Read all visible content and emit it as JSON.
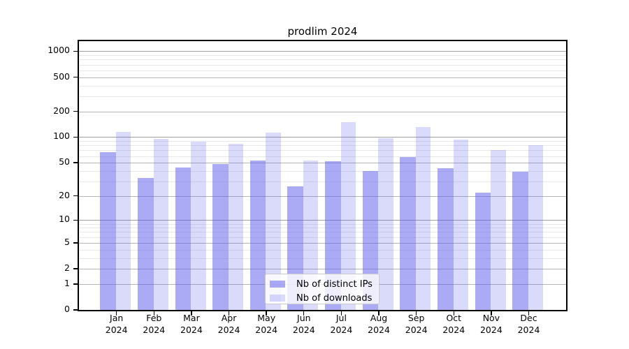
{
  "colors": {
    "ips": "rgba(85,85,235,0.5)",
    "downloads": "rgba(85,85,235,0.22)",
    "grid_major": "#b5b5b5",
    "grid_decade": "#a0a0a0",
    "grid_minor": "#e8e8e8",
    "axis": "#000000",
    "legend_bg": "rgba(255,255,255,0.8)",
    "legend_border": "#c9c9c9"
  },
  "chart_data": {
    "type": "bar",
    "title": "prodlim 2024",
    "x_months": [
      "Jan",
      "Feb",
      "Mar",
      "Apr",
      "May",
      "Jun",
      "Jul",
      "Aug",
      "Sep",
      "Oct",
      "Nov",
      "Dec"
    ],
    "x_year": "2024",
    "series": [
      {
        "name": "Nb of distinct IPs",
        "values": [
          67,
          33,
          44,
          48,
          53,
          26,
          52,
          40,
          58,
          43,
          22,
          39
        ]
      },
      {
        "name": "Nb of downloads",
        "values": [
          116,
          96,
          89,
          84,
          112,
          53,
          149,
          98,
          132,
          93,
          70,
          80
        ]
      }
    ],
    "yscale": "log1p",
    "y_ticks": [
      0,
      1,
      2,
      5,
      10,
      20,
      50,
      100,
      200,
      500,
      1000
    ],
    "y_minor_ticks": [
      3,
      4,
      6,
      7,
      8,
      9,
      30,
      40,
      60,
      70,
      80,
      90,
      300,
      400,
      600,
      700,
      800,
      900
    ],
    "ylim": [
      0,
      1300
    ],
    "grid": true,
    "legend_position": "lower center"
  }
}
